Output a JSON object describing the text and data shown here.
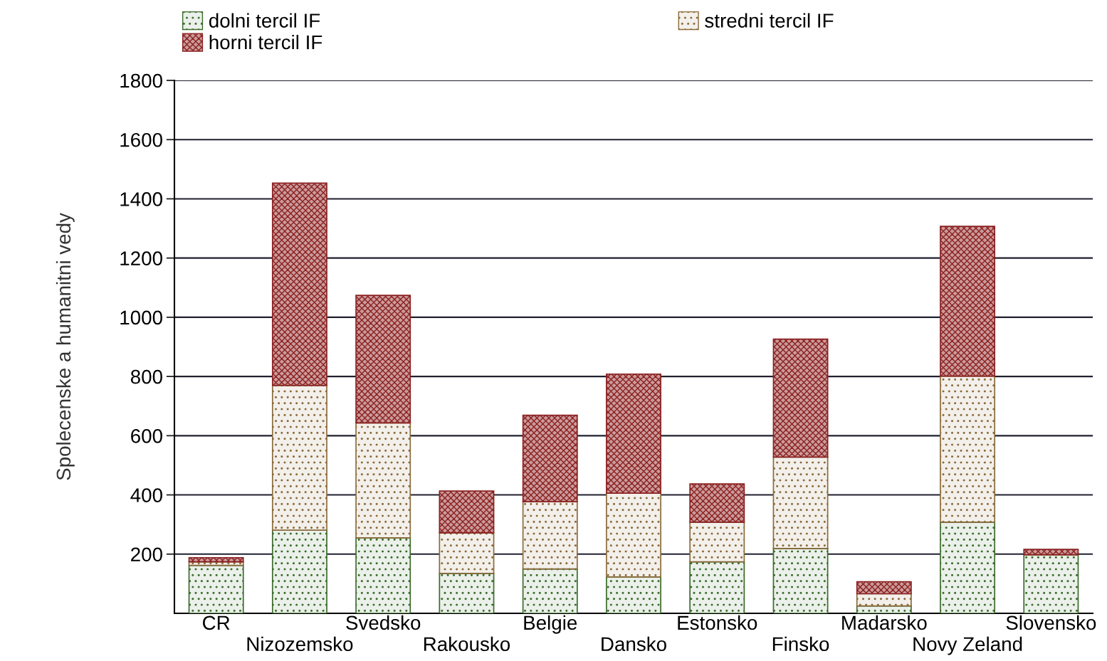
{
  "chart_data": {
    "type": "bar",
    "stacked": true,
    "ylabel": "Spolecenske a humanitni vedy",
    "categories": [
      "CR",
      "Nizozemsko",
      "Svedsko",
      "Rakousko",
      "Belgie",
      "Dansko",
      "Estonsko",
      "Finsko",
      "Madarsko",
      "Novy Zeland",
      "Slovensko"
    ],
    "series": [
      {
        "name": "dolni tercil IF",
        "color": "#3a6b2a",
        "values": [
          162,
          281,
          255,
          135,
          150,
          123,
          174,
          219,
          25,
          308,
          198
        ]
      },
      {
        "name": "stredni tercil IF",
        "color": "#8a6a3a",
        "values": [
          12,
          489,
          388,
          137,
          227,
          283,
          134,
          309,
          41,
          493,
          null
        ]
      },
      {
        "name": "horni tercil IF",
        "color": "#8b2020",
        "values": [
          14,
          683,
          431,
          141,
          292,
          402,
          129,
          398,
          41,
          506,
          18
        ]
      }
    ],
    "ylim": [
      0,
      1800
    ],
    "yticks": [
      200,
      400,
      600,
      800,
      1000,
      1200,
      1400,
      1600,
      1800
    ],
    "grid": "y",
    "legend": "top"
  }
}
